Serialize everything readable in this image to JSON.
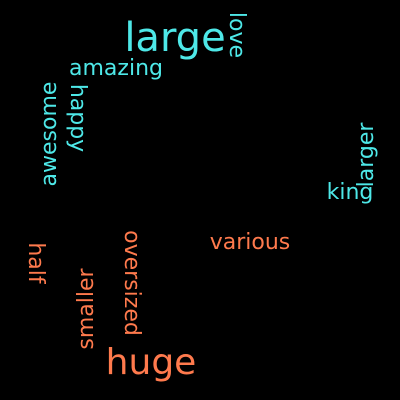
{
  "colors": {
    "background": "#000000",
    "cyan": "#4ee8e8",
    "coral": "#ff7a4d"
  },
  "words": {
    "large": "large",
    "love": "love",
    "amazing": "amazing",
    "happy": "happy",
    "awesome": "awesome",
    "larger": "larger",
    "king": "king",
    "various": "various",
    "half": "half",
    "smaller": "smaller",
    "oversized": "oversized",
    "huge": "huge"
  }
}
